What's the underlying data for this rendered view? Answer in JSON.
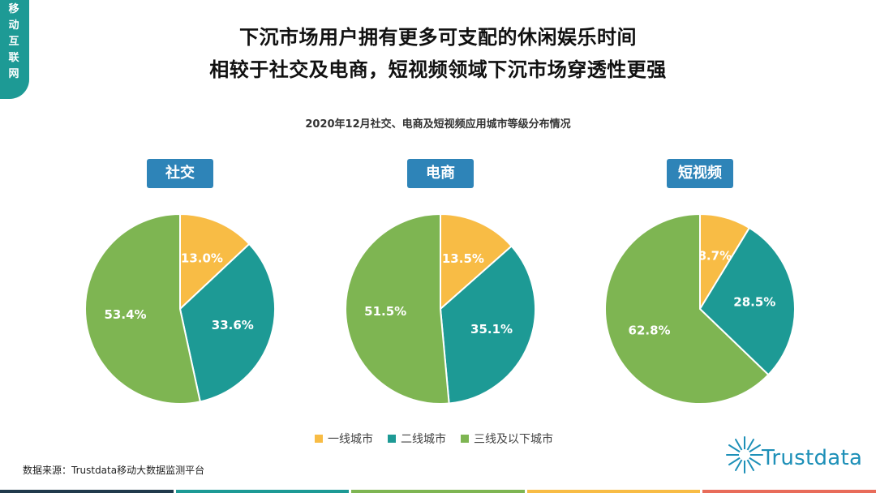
{
  "corner_tag": [
    "移",
    "动",
    "互",
    "联",
    "网"
  ],
  "title_line1": "下沉市场用户拥有更多可支配的休闲娱乐时间",
  "title_line2": "相较于社交及电商，短视频领域下沉市场穿透性更强",
  "subtitle": "2020年12月社交、电商及短视频应用城市等级分布情况",
  "colors": {
    "tier1": "#f8bc45",
    "tier2": "#1d9a95",
    "tier3": "#7eb552",
    "accent": "#1d9a95",
    "pill": "#2e84b8",
    "bottom_bars": [
      "#203a4c",
      "#1d9a95",
      "#7eb552",
      "#f8bc45",
      "#e86c5a"
    ]
  },
  "legend": [
    "一线城市",
    "二线城市",
    "三线及以下城市"
  ],
  "source": "数据来源：Trustdata移动大数据监测平台",
  "logo_text": "Trustdata",
  "chart_data": [
    {
      "type": "pie",
      "title": "社交",
      "categories": [
        "一线城市",
        "二线城市",
        "三线及以下城市"
      ],
      "values": [
        13.0,
        33.6,
        53.4
      ],
      "labels": [
        "13.0%",
        "33.6%",
        "53.4%"
      ]
    },
    {
      "type": "pie",
      "title": "电商",
      "categories": [
        "一线城市",
        "二线城市",
        "三线及以下城市"
      ],
      "values": [
        13.5,
        35.1,
        51.5
      ],
      "labels": [
        "13.5%",
        "35.1%",
        "51.5%"
      ]
    },
    {
      "type": "pie",
      "title": "短视频",
      "categories": [
        "一线城市",
        "二线城市",
        "三线及以下城市"
      ],
      "values": [
        8.7,
        28.5,
        62.8
      ],
      "labels": [
        "8.7%",
        "28.5%",
        "62.8%"
      ]
    }
  ]
}
